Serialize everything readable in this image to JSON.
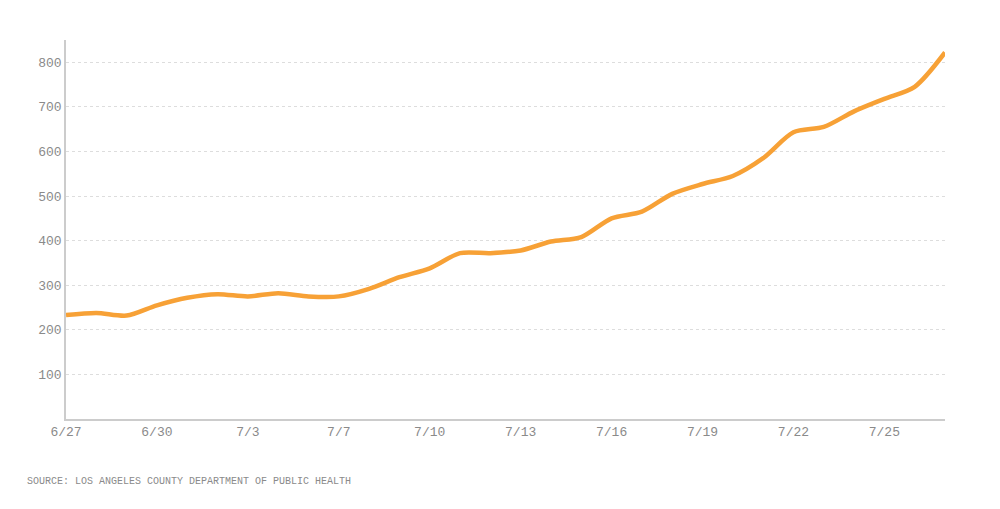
{
  "chart_data": {
    "type": "line",
    "categories": [
      "6/27",
      null,
      null,
      "6/30",
      null,
      null,
      "7/3",
      null,
      null,
      "7/7",
      null,
      null,
      "7/10",
      null,
      null,
      "7/13",
      null,
      null,
      "7/16",
      null,
      null,
      "7/19",
      null,
      null,
      "7/22",
      null,
      null,
      "7/25",
      null,
      null
    ],
    "values": [
      233,
      238,
      232,
      255,
      272,
      280,
      275,
      282,
      275,
      275,
      292,
      318,
      338,
      372,
      372,
      378,
      398,
      408,
      450,
      465,
      505,
      527,
      545,
      585,
      643,
      655,
      690,
      718,
      745,
      822
    ],
    "color": "#f7a136",
    "line_style": "solid",
    "ylim": [
      0,
      850
    ],
    "yticks": [
      100,
      200,
      300,
      400,
      500,
      600,
      700,
      800
    ],
    "grid": true,
    "annotation": "SOURCE: LOS ANGELES COUNTY DEPARTMENT OF PUBLIC HEALTH"
  }
}
